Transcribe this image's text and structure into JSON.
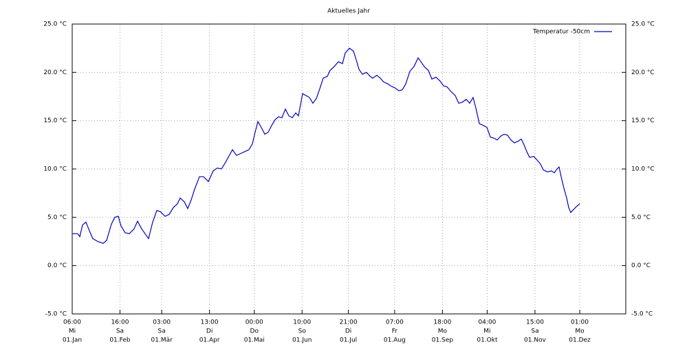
{
  "chart_data": {
    "type": "line",
    "title": "Aktuelles Jahr",
    "series": [
      {
        "name": "Temperatur -50cm",
        "color": "#0000c0",
        "x": [
          6,
          93,
          125,
          169,
          223,
          277,
          331,
          408,
          494,
          549,
          625,
          679,
          733,
          777,
          842,
          907,
          983,
          1037,
          1102,
          1167,
          1211,
          1276,
          1341,
          1395,
          1471,
          1537,
          1602,
          1667,
          1710,
          1775,
          1830,
          1884,
          1938,
          2014,
          2079,
          2155,
          2231,
          2296,
          2361,
          2427,
          2503,
          2535,
          2600,
          2665,
          2731,
          2796,
          2850,
          2893,
          2937,
          2991,
          3045,
          3100,
          3154,
          3208,
          3263,
          3317,
          3371,
          3425,
          3480,
          3534,
          3577,
          3642,
          3697,
          3751,
          3805,
          3860,
          3914,
          3968,
          4033,
          4077,
          4142,
          4207,
          4272,
          4315,
          4381,
          4446,
          4489,
          4533,
          4587,
          4652,
          4706,
          4750,
          4815,
          4869,
          4923,
          4988,
          5032,
          5097,
          5162,
          5216,
          5271,
          5336,
          5401,
          5466,
          5520,
          5575,
          5629,
          5683,
          5748,
          5813,
          5868,
          5922,
          5987,
          6052,
          6106,
          6161,
          6226,
          6280,
          6334,
          6378,
          6432,
          6497,
          6552,
          6606,
          6660,
          6714,
          6769,
          6823,
          6877,
          6931,
          6986,
          7051,
          7094,
          7138,
          7181,
          7225,
          7290,
          7333,
          7398,
          7442,
          7507,
          7572,
          7615,
          7659,
          7691,
          7724,
          7767,
          7811,
          7843,
          7876,
          7919,
          7963,
          8017
        ],
        "values": [
          3.3,
          3.3,
          3.0,
          4.2,
          4.5,
          3.6,
          2.8,
          2.5,
          2.3,
          2.6,
          4.3,
          5.0,
          5.1,
          4.1,
          3.4,
          3.3,
          3.8,
          4.6,
          3.8,
          3.2,
          2.8,
          4.5,
          5.7,
          5.6,
          5.1,
          5.3,
          6.0,
          6.4,
          7.0,
          6.6,
          5.9,
          6.8,
          7.9,
          9.2,
          9.2,
          8.7,
          9.8,
          10.1,
          10.0,
          10.7,
          11.6,
          12.0,
          11.4,
          11.6,
          11.8,
          12.0,
          12.6,
          13.8,
          14.9,
          14.3,
          13.6,
          13.8,
          14.5,
          15.1,
          15.4,
          15.3,
          16.2,
          15.5,
          15.3,
          15.8,
          15.5,
          17.8,
          17.6,
          17.4,
          16.8,
          17.3,
          18.3,
          19.4,
          19.6,
          20.2,
          20.6,
          21.1,
          20.9,
          22.0,
          22.5,
          22.2,
          21.3,
          20.3,
          19.8,
          20.0,
          19.6,
          19.4,
          19.7,
          19.4,
          19.0,
          18.8,
          18.6,
          18.4,
          18.1,
          18.2,
          18.8,
          20.1,
          20.6,
          21.5,
          21.0,
          20.5,
          20.2,
          19.3,
          19.5,
          19.1,
          18.6,
          18.5,
          18.0,
          17.6,
          16.8,
          16.9,
          17.2,
          16.8,
          17.4,
          16.3,
          14.7,
          14.5,
          14.3,
          13.3,
          13.2,
          13.0,
          13.4,
          13.6,
          13.5,
          13.0,
          12.7,
          12.9,
          13.1,
          12.5,
          11.8,
          11.2,
          11.3,
          11.0,
          10.5,
          9.9,
          9.7,
          9.8,
          9.6,
          10.0,
          10.2,
          9.2,
          8.0,
          7.0,
          6.0,
          5.5,
          5.8,
          6.1,
          6.4
        ]
      }
    ],
    "xlim": [
      6,
      8744
    ],
    "xticks": [
      {
        "value": 6,
        "label": [
          "06:00",
          "Mi",
          "01.Jan"
        ]
      },
      {
        "value": 760,
        "label": [
          "16:00",
          "Sa",
          "01.Feb"
        ]
      },
      {
        "value": 1419,
        "label": [
          "03:00",
          "Sa",
          "01.Mär"
        ]
      },
      {
        "value": 2173,
        "label": [
          "13:00",
          "Di",
          "01.Apr"
        ]
      },
      {
        "value": 2880,
        "label": [
          "00:00",
          "Do",
          "01.Mai"
        ]
      },
      {
        "value": 3634,
        "label": [
          "10:00",
          "So",
          "01.Jun"
        ]
      },
      {
        "value": 4365,
        "label": [
          "21:00",
          "Di",
          "01.Jul"
        ]
      },
      {
        "value": 5095,
        "label": [
          "07:00",
          "Fr",
          "01.Aug"
        ]
      },
      {
        "value": 5850,
        "label": [
          "18:00",
          "Mo",
          "01.Sep"
        ]
      },
      {
        "value": 6556,
        "label": [
          "04:00",
          "Mi",
          "01.Okt"
        ]
      },
      {
        "value": 7311,
        "label": [
          "15:00",
          "Sa",
          "01.Nov"
        ]
      },
      {
        "value": 8017,
        "label": [
          "01:00",
          "Mo",
          "01.Dez"
        ]
      }
    ],
    "ylim": [
      -5,
      25
    ],
    "yticks": [
      {
        "value": -5,
        "label": "-5.0 °C"
      },
      {
        "value": 0,
        "label": "0.0 °C"
      },
      {
        "value": 5,
        "label": "5.0 °C"
      },
      {
        "value": 10,
        "label": "10.0 °C"
      },
      {
        "value": 15,
        "label": "15.0 °C"
      },
      {
        "value": 20,
        "label": "20.0 °C"
      },
      {
        "value": 25,
        "label": "25.0 °C"
      }
    ],
    "grid": true,
    "legend": "top-right"
  }
}
